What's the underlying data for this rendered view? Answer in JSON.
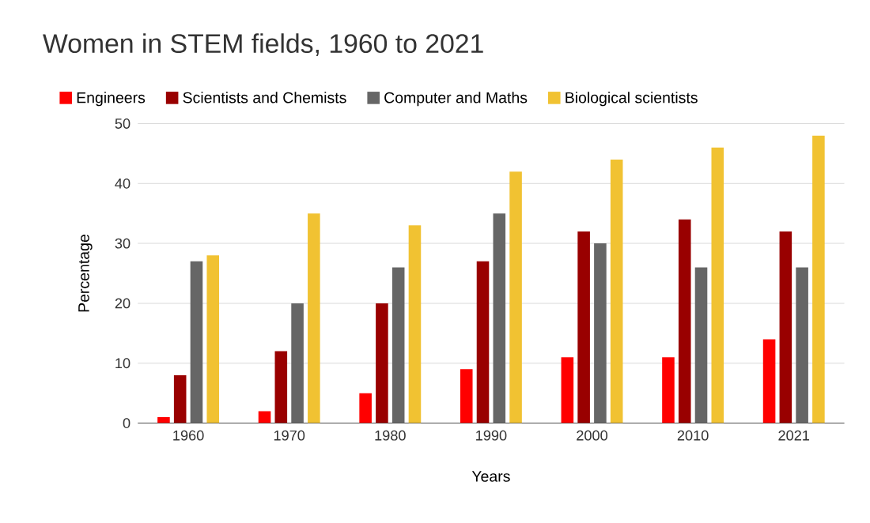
{
  "chart_data": {
    "type": "bar",
    "title": "Women in STEM fields, 1960 to 2021",
    "xlabel": "Years",
    "ylabel": "Percentage",
    "categories": [
      "1960",
      "1970",
      "1980",
      "1990",
      "2000",
      "2010",
      "2021"
    ],
    "series": [
      {
        "name": "Engineers",
        "color": "#ff0000",
        "values": [
          1,
          2,
          5,
          9,
          11,
          11,
          14
        ]
      },
      {
        "name": "Scientists and Chemists",
        "color": "#990000",
        "values": [
          8,
          12,
          20,
          27,
          32,
          34,
          32
        ]
      },
      {
        "name": "Computer and Maths",
        "color": "#666666",
        "values": [
          27,
          20,
          26,
          35,
          30,
          26,
          26
        ]
      },
      {
        "name": "Biological scientists",
        "color": "#f1c232",
        "values": [
          28,
          35,
          33,
          42,
          44,
          46,
          48
        ]
      }
    ],
    "ylim": [
      0,
      50
    ],
    "yticks": [
      0,
      10,
      20,
      30,
      40,
      50
    ],
    "grid": "y",
    "legend": "top"
  }
}
